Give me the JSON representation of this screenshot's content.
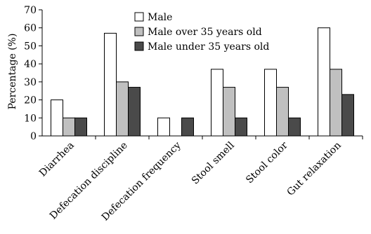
{
  "chart_data": {
    "type": "bar",
    "title": "",
    "xlabel": "",
    "ylabel": "Percentage (%)",
    "ylim": [
      0,
      70
    ],
    "yticks": [
      0,
      10,
      20,
      30,
      40,
      50,
      60,
      70
    ],
    "grid": false,
    "legend_position": "top-center",
    "categories": [
      "Diarrhea",
      "Defecation discipline",
      "Defecation frequency",
      "Stool smell",
      "Stool color",
      "Gut relaxation"
    ],
    "series": [
      {
        "name": "Male",
        "color": "#ffffff",
        "values": [
          20,
          57,
          10,
          37,
          37,
          60
        ]
      },
      {
        "name": "Male over 35 years old",
        "color": "#c0c0c0",
        "values": [
          10,
          30,
          0,
          27,
          27,
          37
        ]
      },
      {
        "name": "Male under 35 years old",
        "color": "#4a4a4a",
        "values": [
          10,
          27,
          10,
          10,
          10,
          23
        ]
      }
    ]
  }
}
